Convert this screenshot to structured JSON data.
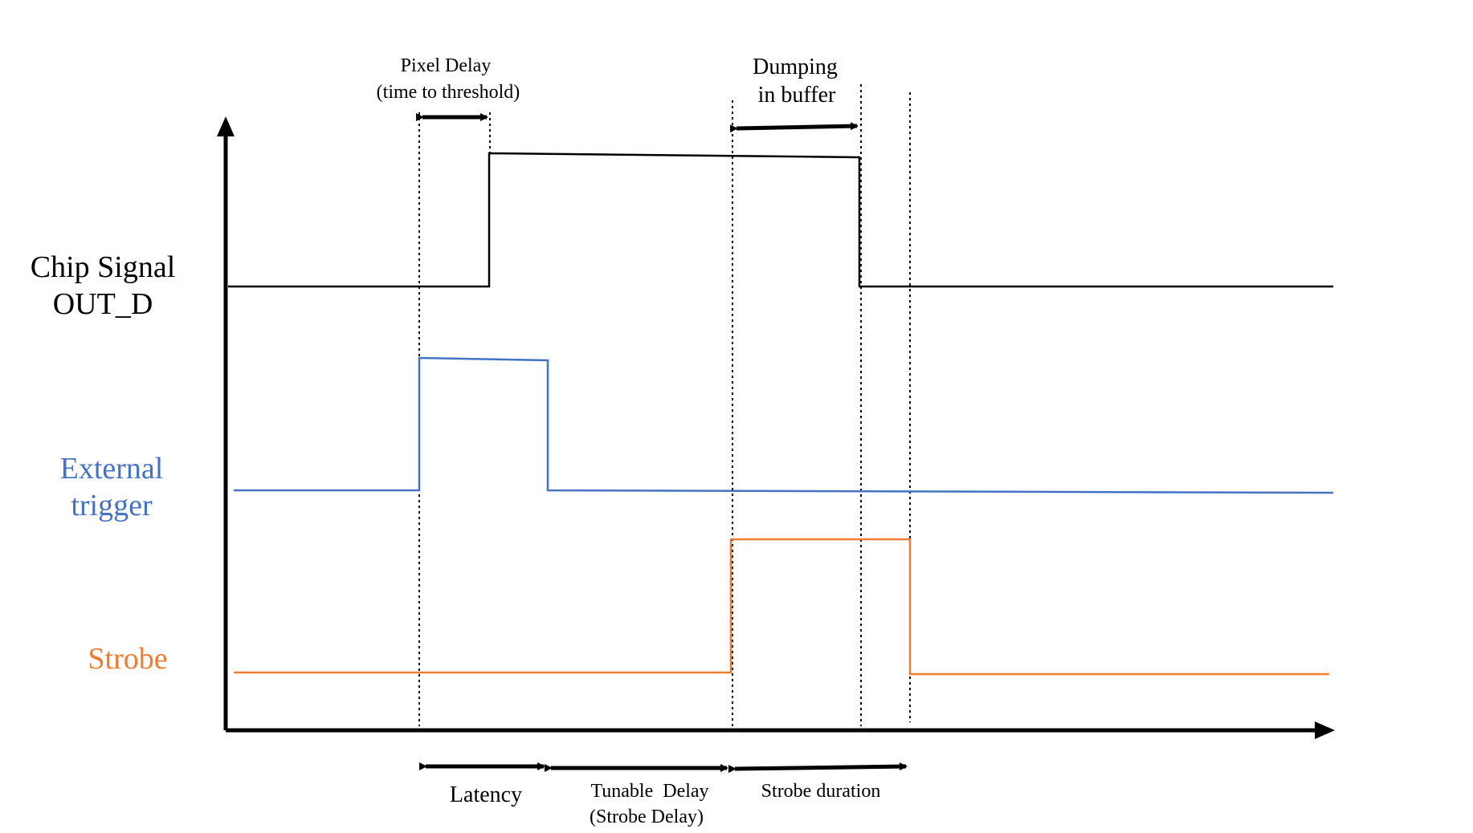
{
  "colors": {
    "chip": "#000000",
    "trigger": "#4472C4",
    "strobe": "#ED7D31"
  },
  "labels": {
    "chip_line1": "Chip Signal",
    "chip_line2": "OUT_D",
    "trigger_line1": "External",
    "trigger_line2": "trigger",
    "strobe": "Strobe"
  },
  "annotations": {
    "pixel_delay_line1": "Pixel Delay",
    "pixel_delay_line2": "(time to threshold)",
    "dumping_line1": "Dumping",
    "dumping_line2": "in buffer",
    "latency": "Latency",
    "tunable_line1": "Tunable  Delay",
    "tunable_line2": "(Strobe Delay)",
    "strobe_duration": "Strobe duration"
  }
}
